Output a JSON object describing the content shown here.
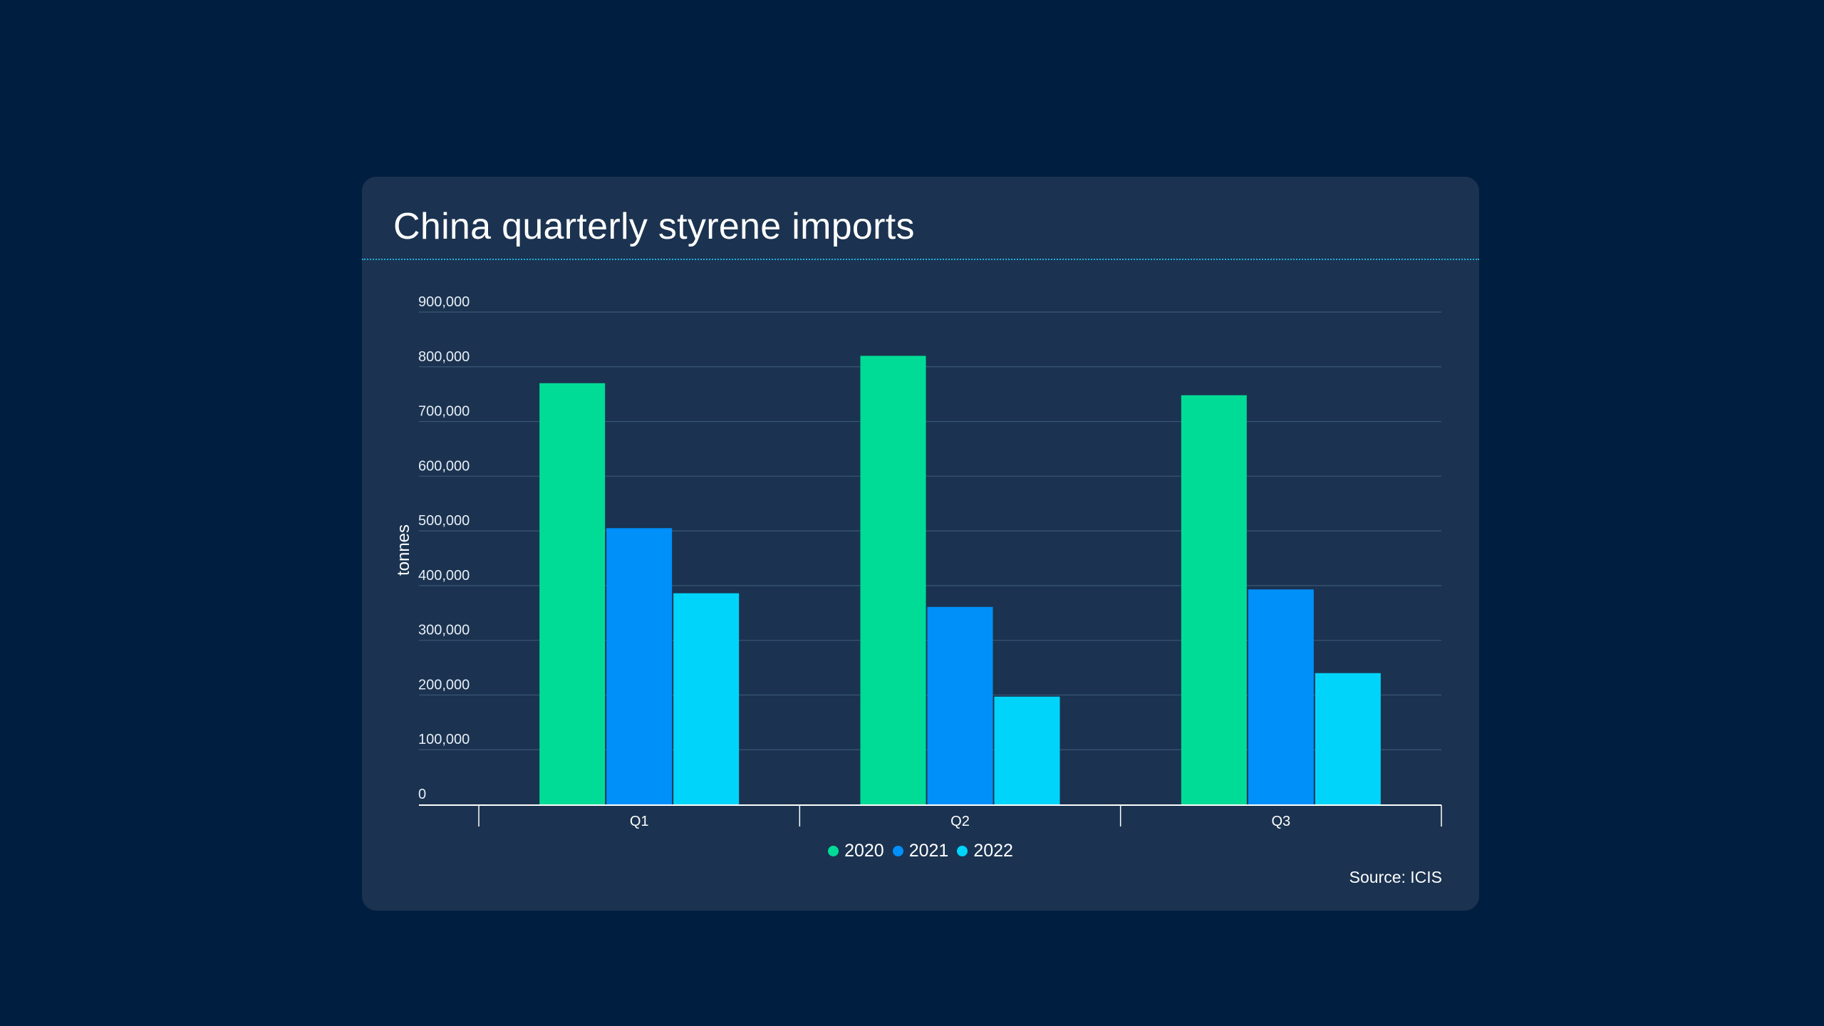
{
  "chart_data": {
    "type": "bar",
    "title": "China quarterly styrene imports",
    "xlabel": "",
    "ylabel": "tonnes",
    "categories": [
      "Q1",
      "Q2",
      "Q3"
    ],
    "series": [
      {
        "name": "2020",
        "color": "#00dc96",
        "values": [
          770000,
          820000,
          748000
        ]
      },
      {
        "name": "2021",
        "color": "#0090fa",
        "values": [
          505000,
          361000,
          393000
        ]
      },
      {
        "name": "2022",
        "color": "#00d4fa",
        "values": [
          386000,
          197000,
          240000
        ]
      }
    ],
    "ylim": [
      0,
      900000
    ],
    "yticks": [
      0,
      100000,
      200000,
      300000,
      400000,
      500000,
      600000,
      700000,
      800000,
      900000
    ],
    "ytick_labels": [
      "0",
      "100,000",
      "200,000",
      "300,000",
      "400,000",
      "500,000",
      "600,000",
      "700,000",
      "800,000",
      "900,000"
    ],
    "grid": true,
    "legend_position": "bottom-center",
    "source": "Source: ICIS"
  }
}
